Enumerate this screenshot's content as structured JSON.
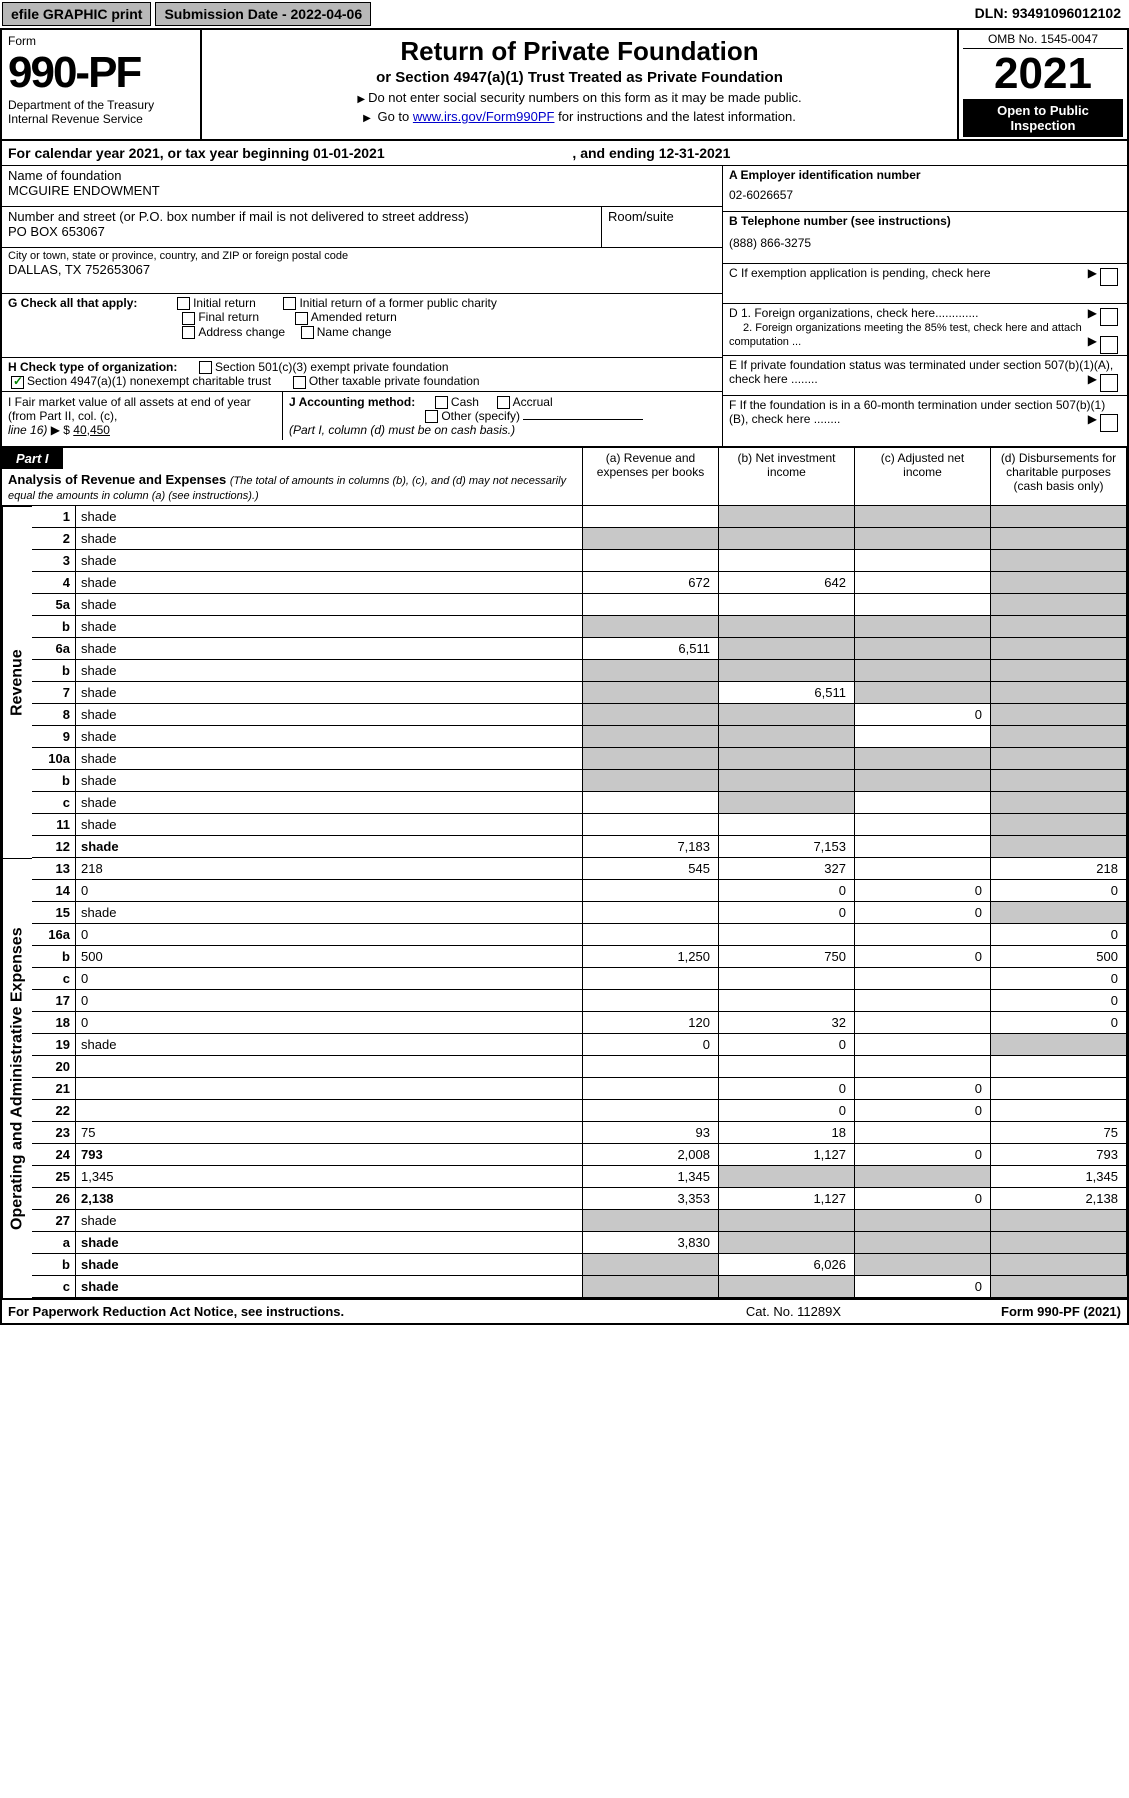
{
  "topbar": {
    "efile": "efile GRAPHIC print",
    "subdate_label": "Submission Date - ",
    "subdate": "2022-04-06",
    "dln_label": "DLN: ",
    "dln": "93491096012102"
  },
  "form": {
    "word_form": "Form",
    "number": "990-PF",
    "dept1": "Department of the Treasury",
    "dept2": "Internal Revenue Service"
  },
  "title": {
    "main": "Return of Private Foundation",
    "sub": "or Section 4947(a)(1) Trust Treated as Private Foundation",
    "note1": "Do not enter social security numbers on this form as it may be made public.",
    "note2_pre": "Go to ",
    "note2_link": "www.irs.gov/Form990PF",
    "note2_post": " for instructions and the latest information."
  },
  "yearbox": {
    "omb": "OMB No. 1545-0047",
    "year": "2021",
    "open1": "Open to Public",
    "open2": "Inspection"
  },
  "calrow": {
    "pre": "For calendar year 2021, or tax year beginning ",
    "begin": "01-01-2021",
    "mid": " , and ending ",
    "end": "12-31-2021"
  },
  "info": {
    "name_lbl": "Name of foundation",
    "name": "MCGUIRE ENDOWMENT",
    "addr_lbl": "Number and street (or P.O. box number if mail is not delivered to street address)",
    "addr": "PO BOX 653067",
    "room_lbl": "Room/suite",
    "city_lbl": "City or town, state or province, country, and ZIP or foreign postal code",
    "city": "DALLAS, TX  752653067",
    "A_lbl": "A Employer identification number",
    "A_val": "02-6026657",
    "B_lbl": "B Telephone number (see instructions)",
    "B_val": "(888) 866-3275",
    "C_lbl": "C If exemption application is pending, check here",
    "D1_lbl": "D 1. Foreign organizations, check here.............",
    "D2_lbl": "2. Foreign organizations meeting the 85% test, check here and attach computation ...",
    "E_lbl": "E If private foundation status was terminated under section 507(b)(1)(A), check here ........",
    "F_lbl": "F If the foundation is in a 60-month termination under section 507(b)(1)(B), check here ........",
    "G_lbl": "G Check all that apply:",
    "G_opts": [
      "Initial return",
      "Initial return of a former public charity",
      "Final return",
      "Amended return",
      "Address change",
      "Name change"
    ],
    "H_lbl": "H Check type of organization:",
    "H1": "Section 501(c)(3) exempt private foundation",
    "H2": "Section 4947(a)(1) nonexempt charitable trust",
    "H3": "Other taxable private foundation",
    "I_lbl": "I Fair market value of all assets at end of year (from Part II, col. (c),",
    "I_line": "line 16)",
    "I_val": "40,450",
    "J_lbl": "J Accounting method:",
    "J1": "Cash",
    "J2": "Accrual",
    "J3": "Other (specify)",
    "J_note": "(Part I, column (d) must be on cash basis.)"
  },
  "partI": {
    "label": "Part I",
    "title": "Analysis of Revenue and Expenses",
    "title_note": "(The total of amounts in columns (b), (c), and (d) may not necessarily equal the amounts in column (a) (see instructions).)",
    "col_a": "(a) Revenue and expenses per books",
    "col_b": "(b) Net investment income",
    "col_c": "(c) Adjusted net income",
    "col_d": "(d) Disbursements for charitable purposes (cash basis only)",
    "revenue_label": "Revenue",
    "expenses_label": "Operating and Administrative Expenses",
    "rows": [
      {
        "n": "1",
        "d": "shade",
        "a": "",
        "b": "shade",
        "c": "shade"
      },
      {
        "n": "2",
        "d": "shade",
        "a": "shade",
        "b": "shade",
        "c": "shade",
        "bold": false
      },
      {
        "n": "3",
        "d": "shade",
        "a": "",
        "b": "",
        "c": ""
      },
      {
        "n": "4",
        "d": "shade",
        "a": "672",
        "b": "642",
        "c": ""
      },
      {
        "n": "5a",
        "d": "shade",
        "a": "",
        "b": "",
        "c": ""
      },
      {
        "n": "b",
        "d": "shade",
        "a": "shade",
        "b": "shade",
        "c": "shade"
      },
      {
        "n": "6a",
        "d": "shade",
        "a": "6,511",
        "b": "shade",
        "c": "shade"
      },
      {
        "n": "b",
        "d": "shade",
        "a": "shade",
        "b": "shade",
        "c": "shade"
      },
      {
        "n": "7",
        "d": "shade",
        "a": "shade",
        "b": "6,511",
        "c": "shade"
      },
      {
        "n": "8",
        "d": "shade",
        "a": "shade",
        "b": "shade",
        "c": "0"
      },
      {
        "n": "9",
        "d": "shade",
        "a": "shade",
        "b": "shade",
        "c": ""
      },
      {
        "n": "10a",
        "d": "shade",
        "a": "shade",
        "b": "shade",
        "c": "shade"
      },
      {
        "n": "b",
        "d": "shade",
        "a": "shade",
        "b": "shade",
        "c": "shade"
      },
      {
        "n": "c",
        "d": "shade",
        "a": "",
        "b": "shade",
        "c": ""
      },
      {
        "n": "11",
        "d": "shade",
        "a": "",
        "b": "",
        "c": ""
      },
      {
        "n": "12",
        "d": "shade",
        "a": "7,183",
        "b": "7,153",
        "c": "",
        "bold": true
      },
      {
        "n": "13",
        "d": "218",
        "a": "545",
        "b": "327",
        "c": ""
      },
      {
        "n": "14",
        "d": "0",
        "a": "",
        "b": "0",
        "c": "0"
      },
      {
        "n": "15",
        "d": "shade",
        "a": "",
        "b": "0",
        "c": "0"
      },
      {
        "n": "16a",
        "d": "0",
        "a": "",
        "b": "",
        "c": ""
      },
      {
        "n": "b",
        "d": "500",
        "a": "1,250",
        "b": "750",
        "c": "0"
      },
      {
        "n": "c",
        "d": "0",
        "a": "",
        "b": "",
        "c": ""
      },
      {
        "n": "17",
        "d": "0",
        "a": "",
        "b": "",
        "c": ""
      },
      {
        "n": "18",
        "d": "0",
        "a": "120",
        "b": "32",
        "c": ""
      },
      {
        "n": "19",
        "d": "shade",
        "a": "0",
        "b": "0",
        "c": ""
      },
      {
        "n": "20",
        "d": "",
        "a": "",
        "b": "",
        "c": ""
      },
      {
        "n": "21",
        "d": "",
        "a": "",
        "b": "0",
        "c": "0"
      },
      {
        "n": "22",
        "d": "",
        "a": "",
        "b": "0",
        "c": "0"
      },
      {
        "n": "23",
        "d": "75",
        "a": "93",
        "b": "18",
        "c": ""
      },
      {
        "n": "24",
        "d": "793",
        "a": "2,008",
        "b": "1,127",
        "c": "0",
        "bold": true
      },
      {
        "n": "25",
        "d": "1,345",
        "a": "1,345",
        "b": "shade",
        "c": "shade"
      },
      {
        "n": "26",
        "d": "2,138",
        "a": "3,353",
        "b": "1,127",
        "c": "0",
        "bold": true
      },
      {
        "n": "27",
        "d": "shade",
        "a": "shade",
        "b": "shade",
        "c": "shade"
      },
      {
        "n": "a",
        "d": "shade",
        "a": "3,830",
        "b": "shade",
        "c": "shade",
        "bold": true
      },
      {
        "n": "b",
        "d": "shade",
        "a": "shade",
        "b": "6,026",
        "c": "shade",
        "bold": true
      },
      {
        "n": "c",
        "d": "shade",
        "a": "shade",
        "b": "shade",
        "c": "0",
        "bold": true
      }
    ]
  },
  "footer": {
    "left": "For Paperwork Reduction Act Notice, see instructions.",
    "mid": "Cat. No. 11289X",
    "right": "Form 990-PF (2021)"
  },
  "colors": {
    "topbar_bg": "#b8b8b8",
    "shade": "#c8c8c8",
    "link": "#0000cc",
    "check": "#008000"
  }
}
